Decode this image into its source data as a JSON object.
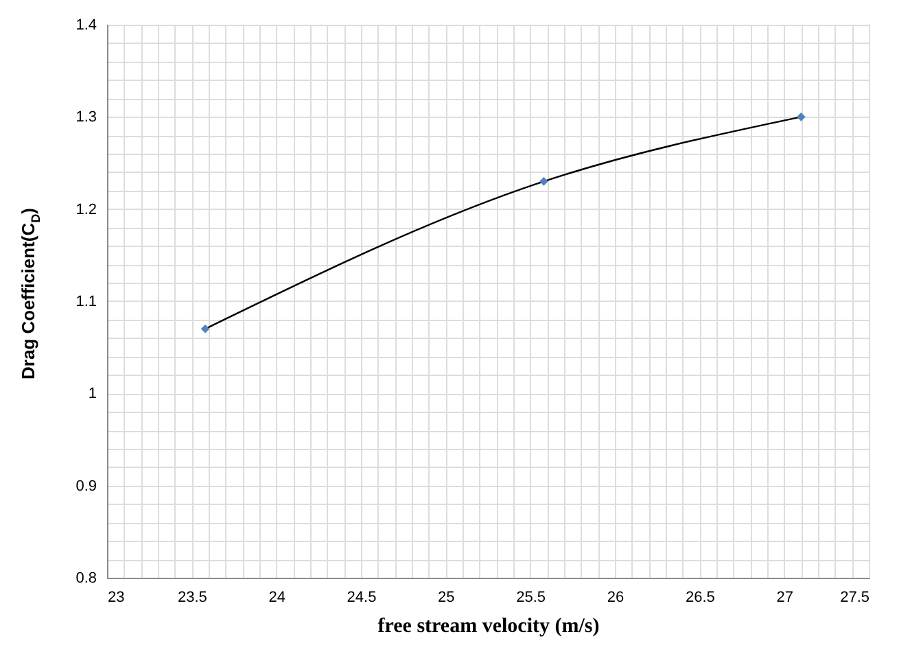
{
  "chart_data": {
    "type": "line",
    "xlabel": "free stream velocity (m/s)",
    "ylabel": "Drag Coefficient(C$_{D}$)",
    "x": [
      23.58,
      25.58,
      27.1
    ],
    "series": [
      {
        "color": "#4f81bd",
        "values": [
          1.07,
          1.23,
          1.3
        ]
      }
    ],
    "marker": "diamond",
    "line_style": "solid",
    "grid": true,
    "legend": false,
    "xlim": [
      23,
      27.5
    ],
    "xticks": [
      23,
      {
        "value": 23.1,
        "label": null
      },
      {
        "value": 23.2,
        "label": null
      },
      {
        "value": 23.3,
        "label": null
      },
      {
        "value": 23.4,
        "label": null
      },
      23.5,
      {
        "value": 23.6,
        "label": null
      },
      {
        "value": 23.7,
        "label": null
      },
      {
        "value": 23.8,
        "label": null
      },
      {
        "value": 23.9,
        "label": null
      },
      24,
      {
        "value": 24.1,
        "label": null
      },
      {
        "value": 24.2,
        "label": null
      },
      {
        "value": 24.3,
        "label": null
      },
      {
        "value": 24.4,
        "label": null
      },
      24.5,
      {
        "value": 24.6,
        "label": null
      },
      {
        "value": 24.7,
        "label": null
      },
      {
        "value": 24.8,
        "label": null
      },
      {
        "value": 24.9,
        "label": null
      },
      25,
      {
        "value": 25.1,
        "label": null
      },
      {
        "value": 25.2,
        "label": null
      },
      {
        "value": 25.3,
        "label": null
      },
      {
        "value": 25.4,
        "label": null
      },
      25.5,
      {
        "value": 25.6,
        "label": null
      },
      {
        "value": 25.7,
        "label": null
      },
      {
        "value": 25.8,
        "label": null
      },
      {
        "value": 25.9,
        "label": null
      },
      26,
      {
        "value": 26.1,
        "label": null
      },
      {
        "value": 26.2,
        "label": null
      },
      {
        "value": 26.3,
        "label": null
      },
      {
        "value": 26.4,
        "label": null
      },
      26.5,
      {
        "value": 26.6,
        "label": null
      },
      {
        "value": 26.7,
        "label": null
      },
      {
        "value": 26.8,
        "label": null
      },
      {
        "value": 26.9,
        "label": null
      },
      27,
      {
        "value": 27.1,
        "label": null
      },
      {
        "value": 27.2,
        "label": null
      },
      {
        "value": 27.3,
        "label": null
      },
      {
        "value": 27.4,
        "label": null
      },
      27.5
    ],
    "ylim": [
      0.8,
      1.4
    ],
    "yticks": [
      0.8,
      {
        "value": 0.82,
        "label": null
      },
      {
        "value": 0.84,
        "label": null
      },
      {
        "value": 0.86,
        "label": null
      },
      {
        "value": 0.88,
        "label": null
      },
      0.9,
      {
        "value": 0.92,
        "label": null
      },
      {
        "value": 0.94,
        "label": null
      },
      {
        "value": 0.96,
        "label": null
      },
      {
        "value": 0.98,
        "label": null
      },
      1,
      {
        "value": 1.02,
        "label": null
      },
      {
        "value": 1.04,
        "label": null
      },
      {
        "value": 1.06,
        "label": null
      },
      {
        "value": 1.08,
        "label": null
      },
      1.1,
      {
        "value": 1.12,
        "label": null
      },
      {
        "value": 1.14,
        "label": null
      },
      {
        "value": 1.16,
        "label": null
      },
      {
        "value": 1.18,
        "label": null
      },
      1.2,
      {
        "value": 1.22,
        "label": null
      },
      {
        "value": 1.24,
        "label": null
      },
      {
        "value": 1.26,
        "label": null
      },
      {
        "value": 1.28,
        "label": null
      },
      1.3,
      {
        "value": 1.32,
        "label": null
      },
      {
        "value": 1.34,
        "label": null
      },
      {
        "value": 1.36,
        "label": null
      },
      {
        "value": 1.38,
        "label": null
      },
      1.4
    ]
  }
}
